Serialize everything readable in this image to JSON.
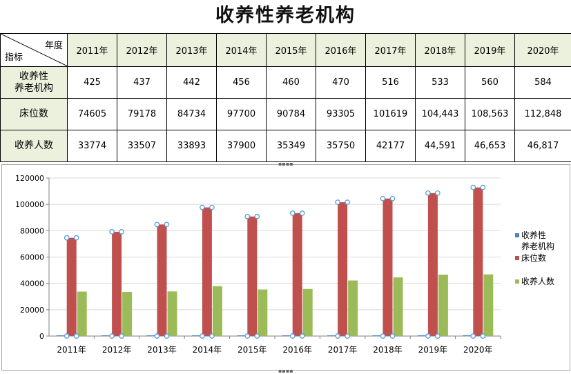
{
  "title": "收养性养老机构",
  "table": {
    "corner_top": "年度",
    "corner_bottom": "指标",
    "years": [
      "2011年",
      "2012年",
      "2013年",
      "2014年",
      "2015年",
      "2016年",
      "2017年",
      "2018年",
      "2019年",
      "2020年"
    ],
    "rows": [
      {
        "label": "收养性\n养老机构",
        "values": [
          "425",
          "437",
          "442",
          "456",
          "460",
          "470",
          "516",
          "533",
          "560",
          "584"
        ]
      },
      {
        "label": "床位数",
        "values": [
          "74605",
          "79178",
          "84734",
          "97700",
          "90784",
          "93305",
          "101619",
          "104,443",
          "108,563",
          "112,848"
        ]
      },
      {
        "label": "收养人数",
        "values": [
          "33774",
          "33507",
          "33893",
          "37900",
          "35349",
          "35750",
          "42177",
          "44,591",
          "46,653",
          "46,817"
        ]
      }
    ]
  },
  "chart_data": {
    "type": "bar",
    "categories": [
      "2011年",
      "2012年",
      "2013年",
      "2014年",
      "2015年",
      "2016年",
      "2017年",
      "2018年",
      "2019年",
      "2020年"
    ],
    "series": [
      {
        "name": "收养性\n养老机构",
        "color": "#4f81bd",
        "values": [
          425,
          437,
          442,
          456,
          460,
          470,
          516,
          533,
          560,
          584
        ]
      },
      {
        "name": "床位数",
        "color": "#c0504d",
        "values": [
          74605,
          79178,
          84734,
          97700,
          90784,
          93305,
          101619,
          104443,
          108563,
          112848
        ]
      },
      {
        "name": "收养人数",
        "color": "#9bbb59",
        "values": [
          33774,
          33507,
          33893,
          37900,
          35349,
          35750,
          42177,
          44591,
          46653,
          46817
        ]
      }
    ],
    "ylim": [
      0,
      120000
    ],
    "yticks": [
      "0",
      "20000",
      "40000",
      "60000",
      "80000",
      "100000",
      "120000"
    ],
    "grid": true,
    "legend": "right"
  }
}
